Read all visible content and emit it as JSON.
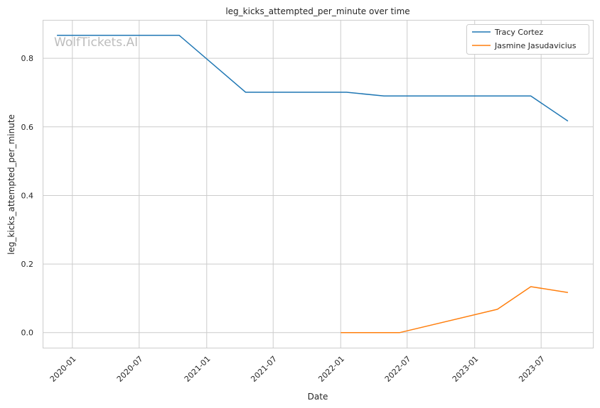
{
  "chart_data": {
    "type": "line",
    "title": "leg_kicks_attempted_per_minute over time",
    "xlabel": "Date",
    "ylabel": "leg_kicks_attempted_per_minute",
    "watermark": "WolfTickets.AI",
    "x_type": "date",
    "xlim": [
      "2019-10-14",
      "2023-11-19"
    ],
    "ylim": [
      -0.044,
      0.91
    ],
    "x_ticks": [
      "2020-01",
      "2020-07",
      "2021-01",
      "2021-07",
      "2022-01",
      "2022-07",
      "2023-01",
      "2023-07"
    ],
    "x_tick_dates": [
      "2020-01-01",
      "2020-07-01",
      "2021-01-01",
      "2021-07-01",
      "2022-01-01",
      "2022-07-01",
      "2023-01-01",
      "2023-07-01"
    ],
    "y_ticks": [
      "0.0",
      "0.2",
      "0.4",
      "0.6",
      "0.8"
    ],
    "y_tick_values": [
      0.0,
      0.2,
      0.4,
      0.6,
      0.8
    ],
    "grid": true,
    "legend_position": "top-right",
    "series": [
      {
        "name": "Tracy Cortez",
        "color": "#1f77b4",
        "points": [
          {
            "x": "2019-11-20",
            "y": 0.867
          },
          {
            "x": "2020-10-18",
            "y": 0.867
          },
          {
            "x": "2021-04-17",
            "y": 0.701
          },
          {
            "x": "2022-01-17",
            "y": 0.701
          },
          {
            "x": "2022-04-29",
            "y": 0.69
          },
          {
            "x": "2023-06-03",
            "y": 0.69
          },
          {
            "x": "2023-09-12",
            "y": 0.617
          }
        ]
      },
      {
        "name": "Jasmine Jasudavicius",
        "color": "#ff7f0e",
        "points": [
          {
            "x": "2022-01-01",
            "y": 0.0
          },
          {
            "x": "2022-06-11",
            "y": 0.0
          },
          {
            "x": "2023-03-04",
            "y": 0.068
          },
          {
            "x": "2023-06-03",
            "y": 0.134
          },
          {
            "x": "2023-09-12",
            "y": 0.117
          }
        ]
      }
    ]
  }
}
